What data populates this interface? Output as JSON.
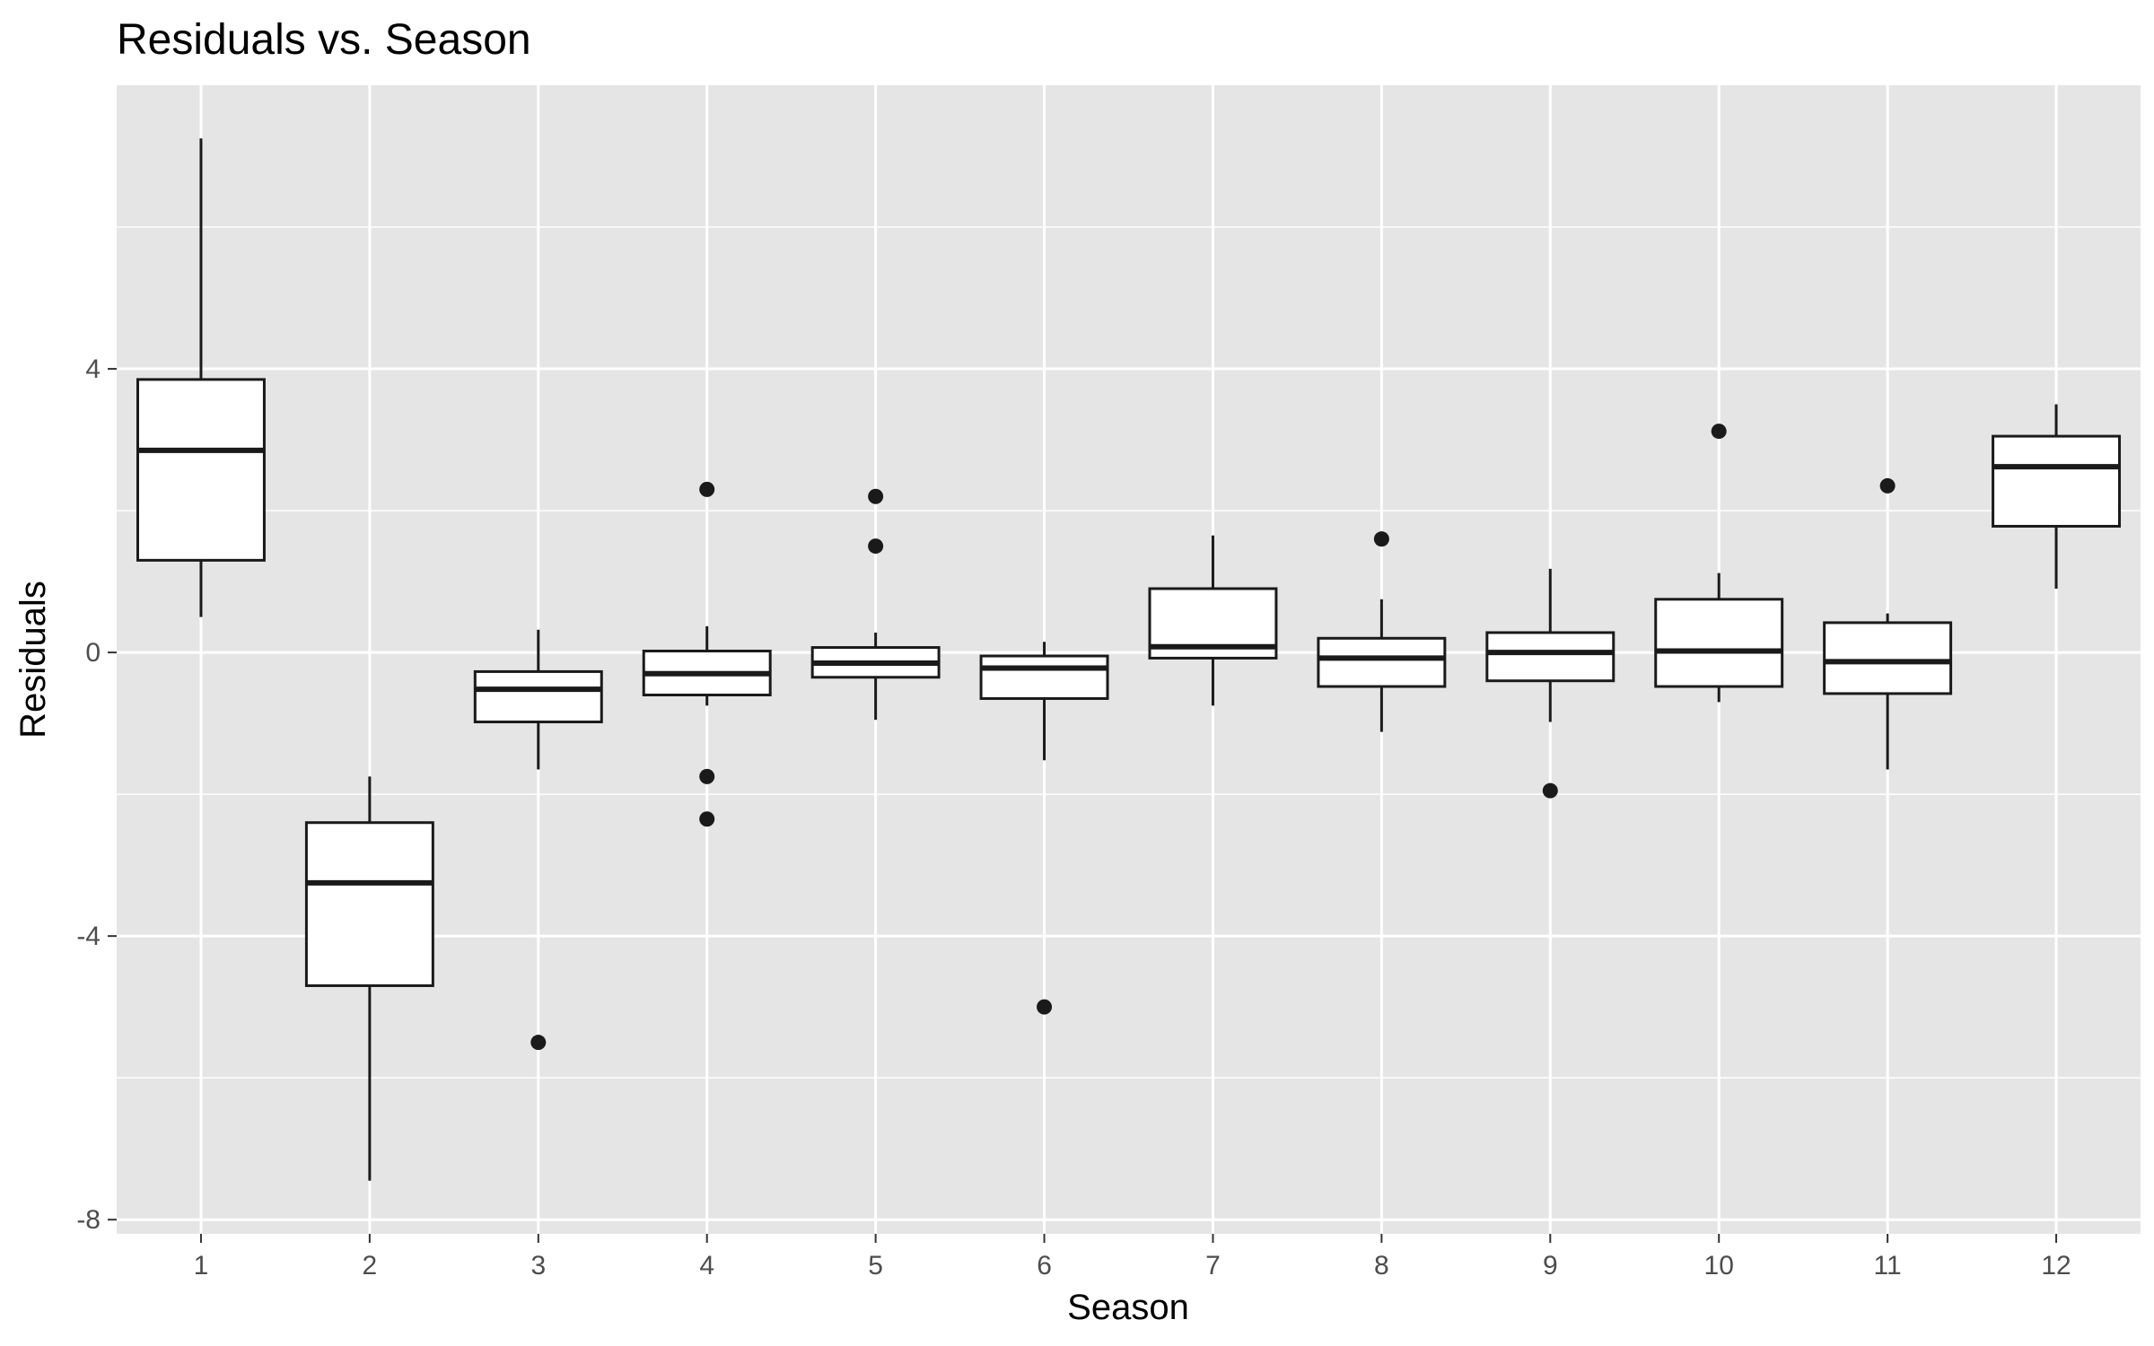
{
  "chart_data": {
    "type": "boxplot",
    "title": "Residuals vs. Season",
    "xlabel": "Season",
    "ylabel": "Residuals",
    "ylim": [
      -8.2,
      8.0
    ],
    "yticks": [
      -8,
      -4,
      0,
      4
    ],
    "ytick_labels": [
      "-8",
      "-4",
      "0",
      "4"
    ],
    "grid": true,
    "panel_background": "#e5e5e5",
    "grid_color": "#ffffff",
    "box_fill": "#ffffff",
    "line_color": "#1a1a1a",
    "categories": [
      "1",
      "2",
      "3",
      "4",
      "5",
      "6",
      "7",
      "8",
      "9",
      "10",
      "11",
      "12"
    ],
    "boxes": [
      {
        "season": "1",
        "whisker_low": 0.5,
        "q1": 1.3,
        "median": 2.85,
        "q3": 3.85,
        "whisker_high": 7.25,
        "outliers": []
      },
      {
        "season": "2",
        "whisker_low": -7.45,
        "q1": -4.7,
        "median": -3.25,
        "q3": -2.4,
        "whisker_high": -1.75,
        "outliers": []
      },
      {
        "season": "3",
        "whisker_low": -1.65,
        "q1": -0.98,
        "median": -0.52,
        "q3": -0.27,
        "whisker_high": 0.32,
        "outliers": [
          -5.5
        ]
      },
      {
        "season": "4",
        "whisker_low": -0.75,
        "q1": -0.6,
        "median": -0.3,
        "q3": 0.02,
        "whisker_high": 0.37,
        "outliers": [
          2.3,
          -1.75,
          -2.35
        ]
      },
      {
        "season": "5",
        "whisker_low": -0.95,
        "q1": -0.35,
        "median": -0.15,
        "q3": 0.07,
        "whisker_high": 0.28,
        "outliers": [
          2.2,
          1.5
        ]
      },
      {
        "season": "6",
        "whisker_low": -1.52,
        "q1": -0.65,
        "median": -0.22,
        "q3": -0.05,
        "whisker_high": 0.15,
        "outliers": [
          -5.0
        ]
      },
      {
        "season": "7",
        "whisker_low": -0.75,
        "q1": -0.08,
        "median": 0.08,
        "q3": 0.9,
        "whisker_high": 1.65,
        "outliers": []
      },
      {
        "season": "8",
        "whisker_low": -1.12,
        "q1": -0.48,
        "median": -0.08,
        "q3": 0.2,
        "whisker_high": 0.75,
        "outliers": [
          1.6
        ]
      },
      {
        "season": "9",
        "whisker_low": -0.98,
        "q1": -0.4,
        "median": 0.0,
        "q3": 0.28,
        "whisker_high": 1.18,
        "outliers": [
          -1.95
        ]
      },
      {
        "season": "10",
        "whisker_low": -0.7,
        "q1": -0.48,
        "median": 0.02,
        "q3": 0.75,
        "whisker_high": 1.12,
        "outliers": [
          3.12
        ]
      },
      {
        "season": "11",
        "whisker_low": -1.65,
        "q1": -0.58,
        "median": -0.13,
        "q3": 0.42,
        "whisker_high": 0.55,
        "outliers": [
          2.35
        ]
      },
      {
        "season": "12",
        "whisker_low": 0.9,
        "q1": 1.78,
        "median": 2.62,
        "q3": 3.05,
        "whisker_high": 3.5,
        "outliers": []
      }
    ]
  }
}
